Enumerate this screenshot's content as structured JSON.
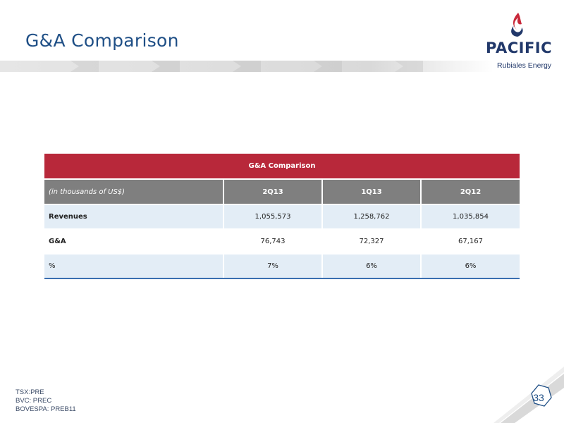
{
  "slide": {
    "title": "G&A Comparison",
    "page_number": "33"
  },
  "logo": {
    "wordmark": "Pacific",
    "subtitle": "Rubiales Energy"
  },
  "table": {
    "caption": "G&A Comparison",
    "unit_label": "(in thousands of US$)",
    "columns": [
      "2Q13",
      "1Q13",
      "2Q12"
    ],
    "rows": [
      {
        "label": "Revenues",
        "values": [
          "1,055,573",
          "1,258,762",
          "1,035,854"
        ]
      },
      {
        "label": "G&A",
        "values": [
          "76,743",
          "72,327",
          "67,167"
        ]
      },
      {
        "label": "%",
        "values": [
          "7%",
          "6%",
          "6%"
        ]
      }
    ]
  },
  "footer": {
    "lines": [
      "TSX:PRE",
      "BVC: PREC",
      "BOVESPA: PREB11"
    ]
  },
  "colors": {
    "title": "#1f4f86",
    "caption_bg": "#b8283a",
    "header_bg": "#7f7f7f",
    "alt_row_bg": "#e3edf6"
  }
}
